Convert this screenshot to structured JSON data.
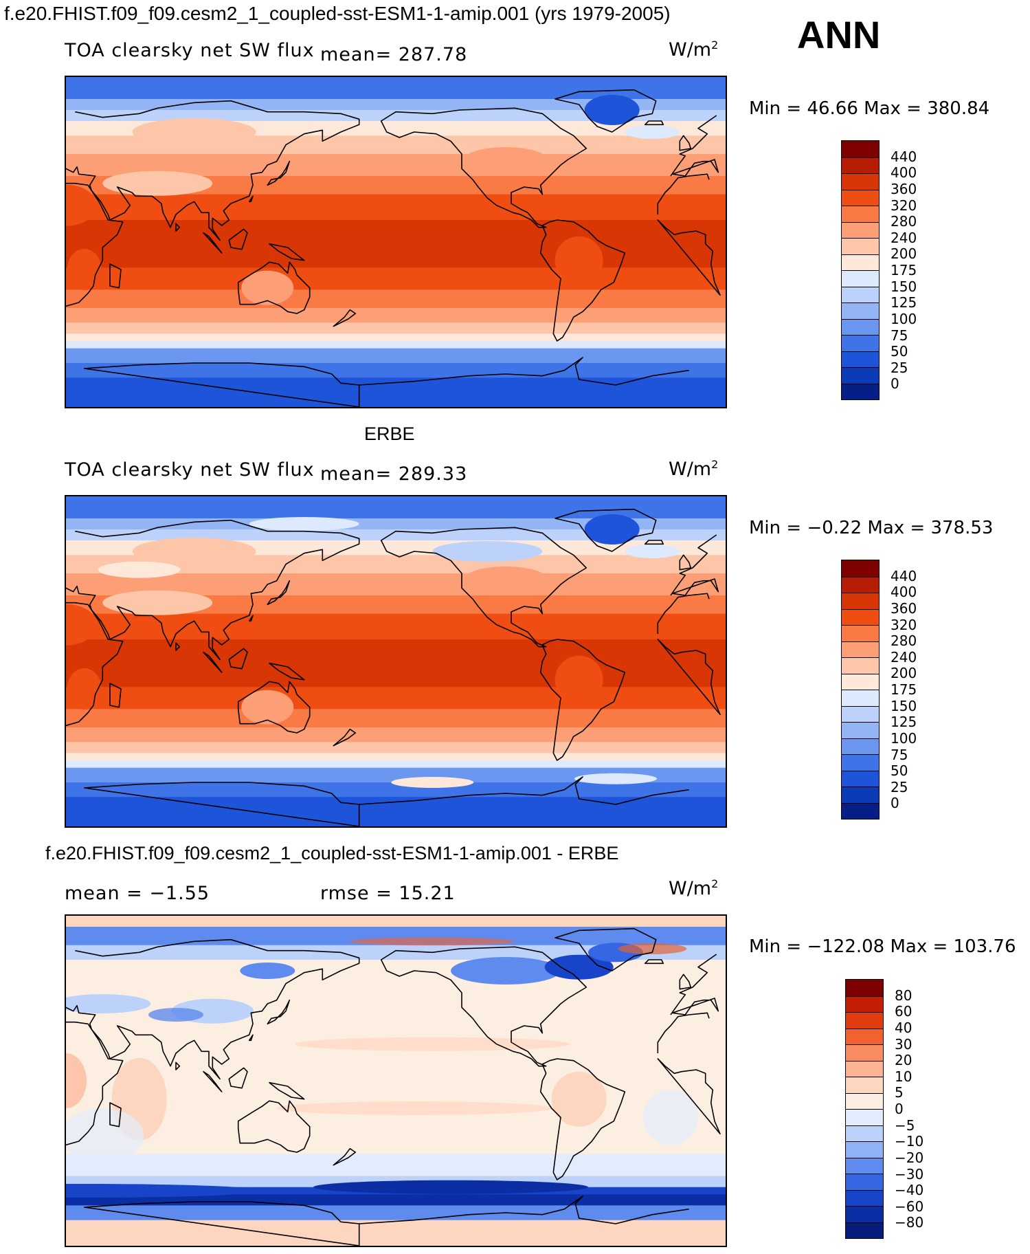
{
  "title": "f.e20.FHIST.f09_f09.cesm2_1_coupled-sst-ESM1-1-amip.001 (yrs 1979-2005)",
  "season": "ANN",
  "panels": [
    {
      "heading": "",
      "variable": "TOA clearsky net SW flux",
      "mean_text": "mean= 287.78",
      "rmse_text": "",
      "units": "W/m",
      "units_exp": "2",
      "minmax": "Min =   46.66 Max = 380.84",
      "legend_levels": [
        "440",
        "400",
        "360",
        "320",
        "280",
        "240",
        "200",
        "175",
        "150",
        "125",
        "100",
        "75",
        "50",
        "25",
        "0"
      ],
      "colors": [
        "#7f0000",
        "#b71c05",
        "#d93606",
        "#ef4d12",
        "#f97a45",
        "#fc9e76",
        "#fdc6a8",
        "#fde8da",
        "#dde9fc",
        "#bcd2fb",
        "#93b5f6",
        "#6b97f0",
        "#3f74e8",
        "#1d54d9",
        "#0c3bb8",
        "#061f88"
      ]
    },
    {
      "heading": "ERBE",
      "variable": "TOA clearsky net SW flux",
      "mean_text": "mean= 289.33",
      "rmse_text": "",
      "units": "W/m",
      "units_exp": "2",
      "minmax": "Min =  −0.22 Max = 378.53",
      "legend_levels": [
        "440",
        "400",
        "360",
        "320",
        "280",
        "240",
        "200",
        "175",
        "150",
        "125",
        "100",
        "75",
        "50",
        "25",
        "0"
      ],
      "colors": [
        "#7f0000",
        "#b71c05",
        "#d93606",
        "#ef4d12",
        "#f97a45",
        "#fc9e76",
        "#fdc6a8",
        "#fde8da",
        "#dde9fc",
        "#bcd2fb",
        "#93b5f6",
        "#6b97f0",
        "#3f74e8",
        "#1d54d9",
        "#0c3bb8",
        "#061f88"
      ]
    },
    {
      "heading": "f.e20.FHIST.f09_f09.cesm2_1_coupled-sst-ESM1-1-amip.001 - ERBE",
      "variable": "",
      "mean_text": "mean =   −1.55",
      "rmse_text": "rmse =    15.21",
      "units": "W/m",
      "units_exp": "2",
      "minmax": "Min = −122.08 Max = 103.76",
      "legend_levels": [
        "80",
        "60",
        "40",
        "30",
        "20",
        "10",
        "5",
        "0",
        "−5",
        "−10",
        "−20",
        "−30",
        "−40",
        "−60",
        "−80"
      ],
      "colors": [
        "#7f0000",
        "#c41e05",
        "#e23d0e",
        "#f26231",
        "#fb8c62",
        "#fcb393",
        "#fdd6c0",
        "#fdeee2",
        "#e2ecfc",
        "#bcd2fb",
        "#8fb1f6",
        "#5f8bee",
        "#3566e4",
        "#1744c8",
        "#0b2ea5",
        "#061d7c"
      ]
    }
  ]
}
